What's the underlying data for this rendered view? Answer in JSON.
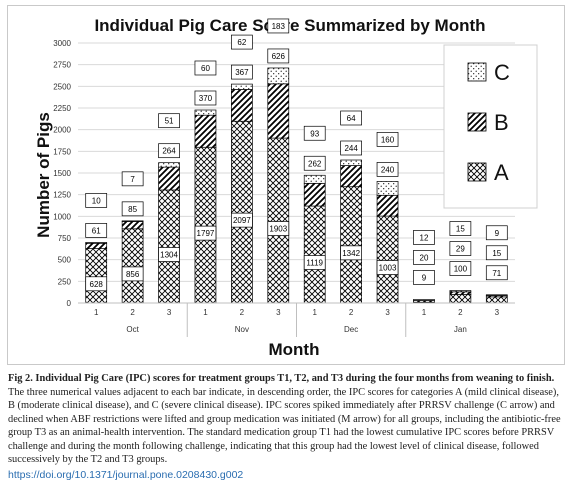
{
  "chart_data": {
    "type": "bar",
    "stacked": true,
    "title": "Individual Pig Care Score Summarized by Month",
    "xlabel": "Month",
    "ylabel": "Number of Pigs",
    "ylim": [
      0,
      3000
    ],
    "yticks": [
      0,
      250,
      500,
      750,
      1000,
      1250,
      1500,
      1750,
      2000,
      2250,
      2500,
      2750,
      3000
    ],
    "grid": true,
    "legend_position": "top-right",
    "groups": [
      {
        "label": "Oct",
        "categories": [
          "1",
          "2",
          "3"
        ]
      },
      {
        "label": "Nov",
        "categories": [
          "1",
          "2",
          "3"
        ]
      },
      {
        "label": "Dec",
        "categories": [
          "1",
          "2",
          "3"
        ]
      },
      {
        "label": "Jan",
        "categories": [
          "1",
          "2",
          "3"
        ]
      }
    ],
    "series": [
      {
        "name": "A",
        "pattern": "crosshatch",
        "values": [
          628,
          856,
          1304,
          1797,
          2097,
          1903,
          1119,
          1342,
          1003,
          9,
          100,
          71
        ]
      },
      {
        "name": "B",
        "pattern": "diagonal",
        "values": [
          61,
          85,
          264,
          370,
          367,
          626,
          262,
          244,
          240,
          20,
          29,
          15
        ]
      },
      {
        "name": "C",
        "pattern": "dots",
        "values": [
          10,
          7,
          51,
          60,
          62,
          183,
          93,
          64,
          160,
          12,
          15,
          9
        ]
      }
    ],
    "colors": {
      "stroke": "#000000",
      "grid": "#d9d9d9"
    }
  },
  "caption": {
    "lead": "Fig 2. Individual Pig Care (IPC) scores for treatment groups T1, T2, and T3 during the four months from weaning to finish.",
    "body": "The three numerical values adjacent to each bar indicate, in descending order, the IPC scores for categories A (mild clinical disease), B (moderate clinical disease), and C (severe clinical disease). IPC scores spiked immediately after PRRSV challenge (C arrow) and declined when ABF restrictions were lifted and group medication was initiated (M arrow) for all groups, including the antibiotic-free group T3 as an animal-health intervention. The standard medication group T1 had the lowest cumulative IPC scores before PRRSV challenge and during the month following challenge, indicating that this group had the lowest level of clinical disease, followed successively by the T2 and T3 groups."
  },
  "doi": "https://doi.org/10.1371/journal.pone.0208430.g002"
}
